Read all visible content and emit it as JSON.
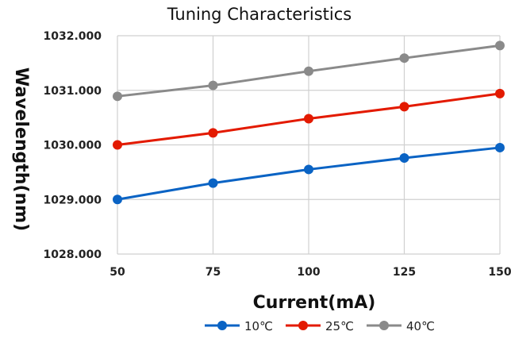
{
  "chart_data": {
    "type": "line",
    "title": "Tuning Characteristics",
    "xlabel": "Current(mA)",
    "ylabel": "Wavelength(nm)",
    "x": [
      50,
      75,
      100,
      125,
      150
    ],
    "x_tick_labels": [
      "50",
      "75",
      "100",
      "125",
      "150"
    ],
    "xlim": [
      50,
      150
    ],
    "ylim": [
      1028,
      1032
    ],
    "y_ticks": [
      1028,
      1029,
      1030,
      1031,
      1032
    ],
    "y_tick_labels": [
      "1028.000",
      "1029.000",
      "1030.000",
      "1031.000",
      "1032.000"
    ],
    "grid": true,
    "legend_position": "bottom",
    "series": [
      {
        "name": "10℃",
        "color": "#0a63c4",
        "values": [
          1029.0,
          1029.3,
          1029.55,
          1029.76,
          1029.95
        ]
      },
      {
        "name": "25℃",
        "color": "#e31a00",
        "values": [
          1030.0,
          1030.22,
          1030.48,
          1030.7,
          1030.94
        ]
      },
      {
        "name": "40℃",
        "color": "#8a8a8a",
        "values": [
          1030.89,
          1031.09,
          1031.35,
          1031.59,
          1031.82
        ]
      }
    ]
  }
}
